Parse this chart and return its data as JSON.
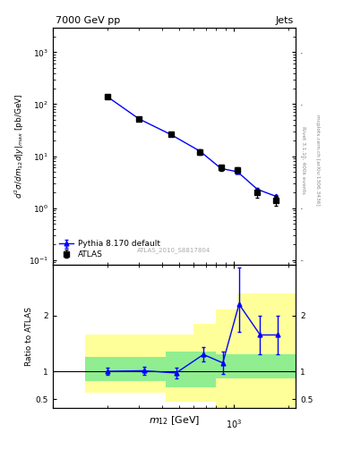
{
  "title_left": "7000 GeV pp",
  "title_right": "Jets",
  "right_label1": "Rivet 3.1.10, 400k events",
  "right_label2": "mcplots.cern.ch [arXiv:1306.3436]",
  "watermark": "ATLAS_2010_S8817804",
  "xlabel": "m_{12} [GeV]",
  "atlas_x": [
    200,
    300,
    450,
    650,
    850,
    1050,
    1350,
    1700
  ],
  "atlas_y": [
    140,
    52,
    26,
    12,
    6.0,
    5.5,
    2.0,
    1.4
  ],
  "atlas_yerr_lo": [
    10,
    4,
    2,
    1.5,
    0.7,
    0.6,
    0.4,
    0.3
  ],
  "atlas_yerr_hi": [
    10,
    4,
    2,
    1.5,
    0.7,
    0.6,
    0.4,
    0.3
  ],
  "pythia_x": [
    200,
    300,
    450,
    650,
    850,
    1050,
    1350,
    1700
  ],
  "pythia_y": [
    140,
    52,
    26,
    12.5,
    5.8,
    5.0,
    2.3,
    1.7
  ],
  "pythia_yerr_lo": [
    2,
    1.5,
    0.8,
    0.4,
    0.2,
    0.2,
    0.15,
    0.12
  ],
  "pythia_yerr_hi": [
    2,
    1.5,
    0.8,
    0.4,
    0.2,
    0.2,
    0.15,
    0.12
  ],
  "ratio_x": [
    200,
    320,
    480,
    680,
    870,
    1070,
    1400,
    1750
  ],
  "ratio_y": [
    1.0,
    1.01,
    0.97,
    1.3,
    1.15,
    2.2,
    1.65,
    1.65
  ],
  "ratio_yerr_lo": [
    0.06,
    0.07,
    0.09,
    0.13,
    0.2,
    0.5,
    0.35,
    0.35
  ],
  "ratio_yerr_hi": [
    0.06,
    0.07,
    0.09,
    0.13,
    0.2,
    0.65,
    0.35,
    0.35
  ],
  "band_edges_x": [
    150,
    280,
    420,
    600,
    800,
    1050,
    1550,
    2200
  ],
  "yellow_lo": [
    0.62,
    0.62,
    0.45,
    0.45,
    0.35,
    0.35,
    0.35,
    0.35
  ],
  "yellow_hi": [
    1.65,
    1.65,
    1.65,
    1.85,
    2.1,
    2.4,
    2.4,
    2.4
  ],
  "green_lo": [
    0.82,
    0.82,
    0.72,
    0.72,
    0.88,
    0.88,
    0.88,
    0.88
  ],
  "green_hi": [
    1.25,
    1.25,
    1.35,
    1.35,
    1.3,
    1.3,
    1.3,
    1.3
  ],
  "atlas_color": "#000000",
  "pythia_color": "#0000ff",
  "green_color": "#90EE90",
  "yellow_color": "#FFFF99",
  "xlim": [
    150,
    2200
  ],
  "ylim_main": [
    0.08,
    3000
  ],
  "ylim_ratio": [
    0.35,
    2.9
  ],
  "legend_atlas": "ATLAS",
  "legend_pythia": "Pythia 8.170 default"
}
